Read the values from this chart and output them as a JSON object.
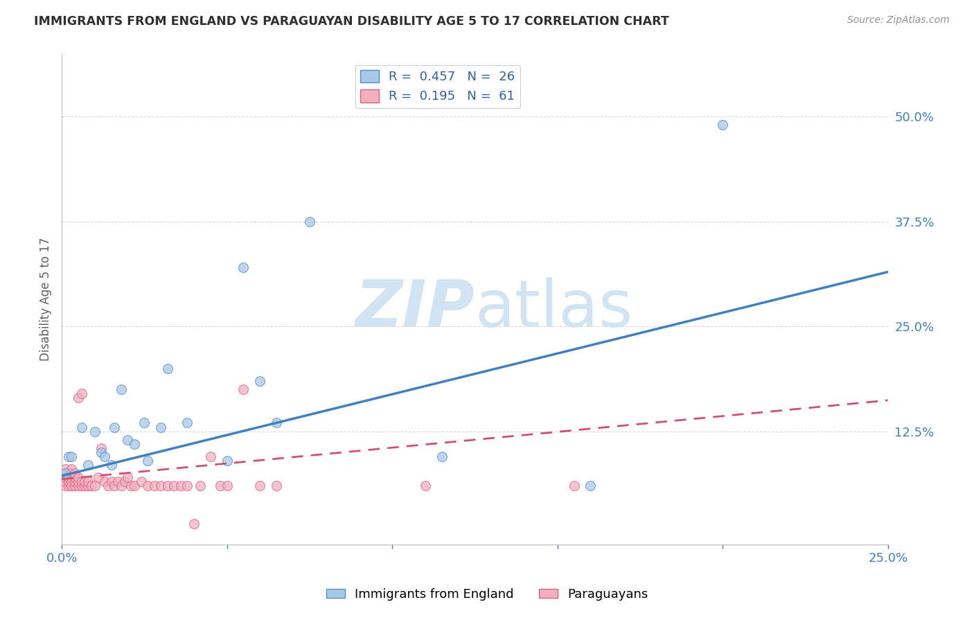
{
  "title": "IMMIGRANTS FROM ENGLAND VS PARAGUAYAN DISABILITY AGE 5 TO 17 CORRELATION CHART",
  "source": "Source: ZipAtlas.com",
  "ylabel": "Disability Age 5 to 17",
  "xlim": [
    0.0,
    0.25
  ],
  "ylim": [
    -0.01,
    0.575
  ],
  "xticks": [
    0.0,
    0.05,
    0.1,
    0.15,
    0.2,
    0.25
  ],
  "xtick_labels": [
    "0.0%",
    "",
    "",
    "",
    "",
    "25.0%"
  ],
  "ytick_labels_right": [
    "50.0%",
    "37.5%",
    "25.0%",
    "12.5%"
  ],
  "ytick_vals_right": [
    0.5,
    0.375,
    0.25,
    0.125
  ],
  "legend1_r": "0.457",
  "legend1_n": "26",
  "legend2_r": "0.195",
  "legend2_n": "61",
  "england_color": "#a8c8e8",
  "england_edge_color": "#5090c8",
  "england_line_color": "#4080c0",
  "paraguay_color": "#f0b0c0",
  "paraguay_edge_color": "#e06080",
  "paraguay_line_color": "#d05070",
  "axis_label_color": "#4080c0",
  "text_color": "#3060a0",
  "watermark_color": "#d0e4f4",
  "grid_color": "#d0d8e8",
  "bg_color": "#ffffff",
  "title_color": "#303030",
  "source_color": "#909090",
  "ylabel_color": "#606060",
  "england_trend_x": [
    0.0,
    0.25
  ],
  "england_trend_y": [
    0.072,
    0.315
  ],
  "paraguay_trend_x": [
    0.0,
    0.25
  ],
  "paraguay_trend_y": [
    0.068,
    0.162
  ],
  "england_points_x": [
    0.001,
    0.002,
    0.003,
    0.006,
    0.008,
    0.01,
    0.012,
    0.013,
    0.015,
    0.016,
    0.018,
    0.02,
    0.022,
    0.025,
    0.026,
    0.03,
    0.032,
    0.038,
    0.05,
    0.055,
    0.06,
    0.065,
    0.075,
    0.115,
    0.16,
    0.2
  ],
  "england_points_y": [
    0.075,
    0.095,
    0.095,
    0.13,
    0.085,
    0.125,
    0.1,
    0.095,
    0.085,
    0.13,
    0.175,
    0.115,
    0.11,
    0.135,
    0.09,
    0.13,
    0.2,
    0.135,
    0.09,
    0.32,
    0.185,
    0.135,
    0.375,
    0.095,
    0.06,
    0.49
  ],
  "paraguay_points_x": [
    0.001,
    0.001,
    0.001,
    0.001,
    0.001,
    0.002,
    0.002,
    0.002,
    0.002,
    0.003,
    0.003,
    0.003,
    0.003,
    0.003,
    0.004,
    0.004,
    0.004,
    0.004,
    0.005,
    0.005,
    0.005,
    0.005,
    0.006,
    0.006,
    0.006,
    0.007,
    0.007,
    0.008,
    0.008,
    0.009,
    0.01,
    0.011,
    0.012,
    0.013,
    0.014,
    0.015,
    0.016,
    0.017,
    0.018,
    0.019,
    0.02,
    0.021,
    0.022,
    0.024,
    0.026,
    0.028,
    0.03,
    0.032,
    0.034,
    0.036,
    0.038,
    0.04,
    0.042,
    0.045,
    0.048,
    0.05,
    0.055,
    0.06,
    0.065,
    0.11,
    0.155
  ],
  "paraguay_points_y": [
    0.06,
    0.065,
    0.07,
    0.075,
    0.08,
    0.06,
    0.065,
    0.07,
    0.075,
    0.06,
    0.065,
    0.07,
    0.075,
    0.08,
    0.06,
    0.065,
    0.07,
    0.075,
    0.06,
    0.065,
    0.07,
    0.165,
    0.06,
    0.065,
    0.17,
    0.06,
    0.065,
    0.06,
    0.065,
    0.06,
    0.06,
    0.07,
    0.105,
    0.065,
    0.06,
    0.065,
    0.06,
    0.065,
    0.06,
    0.065,
    0.07,
    0.06,
    0.06,
    0.065,
    0.06,
    0.06,
    0.06,
    0.06,
    0.06,
    0.06,
    0.06,
    0.015,
    0.06,
    0.095,
    0.06,
    0.06,
    0.175,
    0.06,
    0.06,
    0.06,
    0.06
  ],
  "marker_size": 100,
  "marker_alpha": 0.75
}
